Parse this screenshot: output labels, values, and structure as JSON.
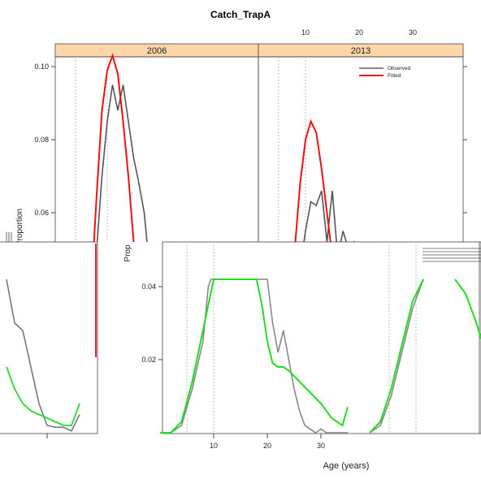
{
  "chart_data": [
    {
      "type": "line",
      "title": "Catch_TrapA",
      "ylabel": "Proportion",
      "panel": "2006",
      "ylim": [
        0.0,
        0.105
      ],
      "yticks": [
        0.04,
        0.06,
        0.08,
        0.1
      ],
      "ytick_labels": [
        "0.04",
        "0.06",
        "0.08",
        "0.10"
      ],
      "series": [
        {
          "name": "Observed",
          "color": "#555555",
          "x": [
            0,
            1,
            2,
            3,
            4,
            5,
            6,
            7,
            8,
            9,
            10,
            11,
            12,
            13,
            14,
            15,
            16,
            17,
            18,
            19,
            20
          ],
          "values": [
            0.0,
            0.0,
            0.0,
            0.004,
            0.012,
            0.03,
            0.05,
            0.07,
            0.085,
            0.095,
            0.088,
            0.095,
            0.085,
            0.075,
            0.068,
            0.06,
            0.045,
            0.03,
            0.018,
            0.008,
            0.003
          ]
        },
        {
          "name": "Fitted",
          "color": "#ee1111",
          "x": [
            0,
            1,
            2,
            3,
            4,
            5,
            6,
            7,
            8,
            9,
            10,
            11,
            12,
            13,
            14,
            15,
            16,
            17,
            18,
            19,
            20
          ],
          "values": [
            0.0,
            0.0,
            0.0,
            0.006,
            0.018,
            0.04,
            0.065,
            0.088,
            0.099,
            0.103,
            0.098,
            0.085,
            0.07,
            0.052,
            0.035,
            0.02,
            0.01,
            0.004,
            0.001,
            0.0,
            0.0
          ]
        }
      ]
    },
    {
      "type": "line",
      "panel": "2013",
      "xticks": [
        10,
        20,
        30
      ],
      "xtick_labels": [
        "10",
        "20",
        "30"
      ],
      "legend": {
        "position": "top-right",
        "entries": [
          {
            "label": "Observed",
            "color": "#888888"
          },
          {
            "label": "Fitted",
            "color": "#ee1111"
          }
        ]
      },
      "series": [
        {
          "name": "Observed",
          "color": "#555555",
          "x": [
            5,
            6,
            7,
            8,
            9,
            10,
            11,
            12,
            13,
            14,
            15,
            16,
            17,
            18,
            19,
            20,
            21,
            22
          ],
          "values": [
            0.0,
            0.008,
            0.018,
            0.03,
            0.045,
            0.055,
            0.063,
            0.062,
            0.066,
            0.052,
            0.066,
            0.048,
            0.055,
            0.05,
            0.052,
            0.045,
            0.04,
            0.03
          ]
        },
        {
          "name": "Fitted",
          "color": "#ee1111",
          "x": [
            5,
            6,
            7,
            8,
            9,
            10,
            11,
            12,
            13,
            14,
            15,
            16,
            17,
            18,
            19,
            20
          ],
          "values": [
            0.0,
            0.012,
            0.03,
            0.05,
            0.068,
            0.08,
            0.085,
            0.082,
            0.072,
            0.06,
            0.048,
            0.038,
            0.03,
            0.02,
            0.01,
            0.004
          ]
        }
      ]
    },
    {
      "type": "line",
      "xlabel": "Age (years)",
      "ylim": [
        0.0,
        0.042
      ],
      "yticks": [
        0.02,
        0.04
      ],
      "ytick_labels": [
        "0.02",
        "0.04"
      ],
      "xticks": [
        10,
        20,
        30
      ],
      "xtick_labels": [
        "10",
        "20",
        "30"
      ],
      "ylabel_fragment": "Prop",
      "series": [
        {
          "name": "Observed",
          "color": "#888888",
          "x": [
            0,
            2,
            4,
            6,
            8,
            9,
            9.5,
            10,
            12,
            14,
            16,
            18,
            20,
            21,
            22,
            23,
            24,
            25,
            26,
            27,
            28,
            29,
            30,
            31,
            32,
            33,
            34,
            35
          ],
          "values": [
            0.0,
            0.0,
            0.002,
            0.012,
            0.025,
            0.04,
            0.042,
            0.042,
            0.042,
            0.042,
            0.042,
            0.042,
            0.042,
            0.03,
            0.022,
            0.028,
            0.02,
            0.012,
            0.006,
            0.002,
            0.001,
            0.0,
            0.001,
            0.0,
            0.0,
            0.0,
            0.0,
            0.0
          ]
        },
        {
          "name": "Fitted",
          "color": "#22dd22",
          "x": [
            0,
            2,
            4,
            6,
            8,
            10,
            12,
            14,
            16,
            17,
            18,
            19,
            20,
            21,
            22,
            23,
            24,
            26,
            28,
            30,
            32,
            33,
            34,
            35
          ],
          "values": [
            0.0,
            0.0,
            0.003,
            0.014,
            0.028,
            0.042,
            0.042,
            0.042,
            0.042,
            0.042,
            0.042,
            0.035,
            0.025,
            0.019,
            0.018,
            0.018,
            0.017,
            0.014,
            0.011,
            0.008,
            0.004,
            0.003,
            0.002,
            0.007
          ]
        }
      ]
    }
  ]
}
